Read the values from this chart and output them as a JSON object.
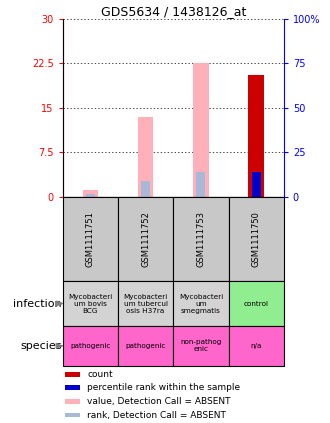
{
  "title": "GDS5634 / 1438126_at",
  "samples": [
    "GSM1111751",
    "GSM1111752",
    "GSM1111753",
    "GSM1111750"
  ],
  "ylim_left": [
    0,
    30
  ],
  "ylim_right": [
    0,
    100
  ],
  "yticks_left": [
    0,
    7.5,
    15,
    22.5,
    30
  ],
  "yticks_right": [
    0,
    25,
    50,
    75,
    100
  ],
  "ytick_labels_left": [
    "0",
    "7.5",
    "15",
    "22.5",
    "30"
  ],
  "ytick_labels_right": [
    "0",
    "25",
    "50",
    "75",
    "100%"
  ],
  "bars": {
    "GSM1111751": {
      "pink_value": 1.2,
      "blue_rank": 1.5,
      "red_count": 0,
      "dark_blue_rank": 0
    },
    "GSM1111752": {
      "pink_value": 13.5,
      "blue_rank": 9.0,
      "red_count": 0,
      "dark_blue_rank": 0
    },
    "GSM1111753": {
      "pink_value": 22.5,
      "blue_rank": 14.0,
      "red_count": 0,
      "dark_blue_rank": 0
    },
    "GSM1111750": {
      "pink_value": 0,
      "blue_rank": 0,
      "red_count": 20.5,
      "dark_blue_rank": 14.0
    }
  },
  "infection_labels": [
    "Mycobacteri\num bovis\nBCG",
    "Mycobacteri\num tubercul\nosis H37ra",
    "Mycobacteri\num\nsmegmatis",
    "control"
  ],
  "species_labels": [
    "pathogenic",
    "pathogenic",
    "non-pathog\nenic",
    "n/a"
  ],
  "infection_colors": [
    "#d3d3d3",
    "#d3d3d3",
    "#d3d3d3",
    "#90ee90"
  ],
  "species_colors": [
    "#ff66cc",
    "#ff66cc",
    "#ff66cc",
    "#ff66cc"
  ],
  "color_pink": "#ffb0b8",
  "color_light_blue": "#aab8d8",
  "color_red": "#cc0000",
  "color_dark_blue": "#0000cc",
  "legend_items": [
    {
      "color": "#cc0000",
      "label": "count"
    },
    {
      "color": "#0000cc",
      "label": "percentile rank within the sample"
    },
    {
      "color": "#ffb0b8",
      "label": "value, Detection Call = ABSENT"
    },
    {
      "color": "#aab8d8",
      "label": "rank, Detection Call = ABSENT"
    }
  ]
}
